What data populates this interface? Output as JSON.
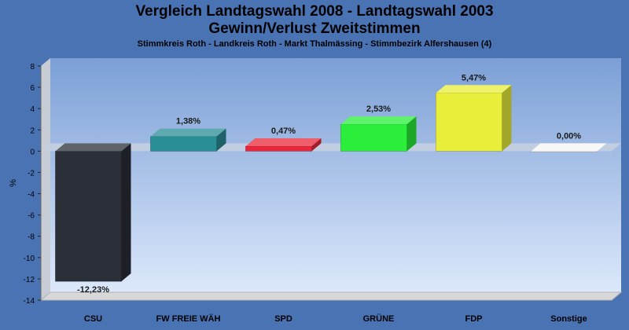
{
  "chart_data": {
    "type": "bar",
    "title": [
      "Vergleich Landtagswahl 2008 - Landtagswahl 2003",
      "Gewinn/Verlust Zweitstimmen"
    ],
    "subtitle": "Stimmkreis Roth - Landkreis Roth - Markt Thalmässing - Stimmbezirk Alfershausen (4)",
    "ylabel": "%",
    "ylim": [
      -14,
      8
    ],
    "yticks": [
      8,
      6,
      4,
      2,
      0,
      -2,
      -4,
      -6,
      -8,
      -10,
      -12,
      -14
    ],
    "grid": false,
    "categories": [
      "CSU",
      "FW FREIE WÄH",
      "SPD",
      "GRÜNE",
      "FDP",
      "Sonstige"
    ],
    "values": [
      -12.23,
      1.38,
      0.47,
      2.53,
      5.47,
      0.0
    ],
    "value_labels": [
      "-12,23%",
      "1,38%",
      "0,47%",
      "2,53%",
      "5,47%",
      "0,00%"
    ],
    "colors": [
      "#2a2f38",
      "#2a8e96",
      "#e8283a",
      "#2aee3a",
      "#e8ee3a",
      "#f4f4f4"
    ]
  }
}
